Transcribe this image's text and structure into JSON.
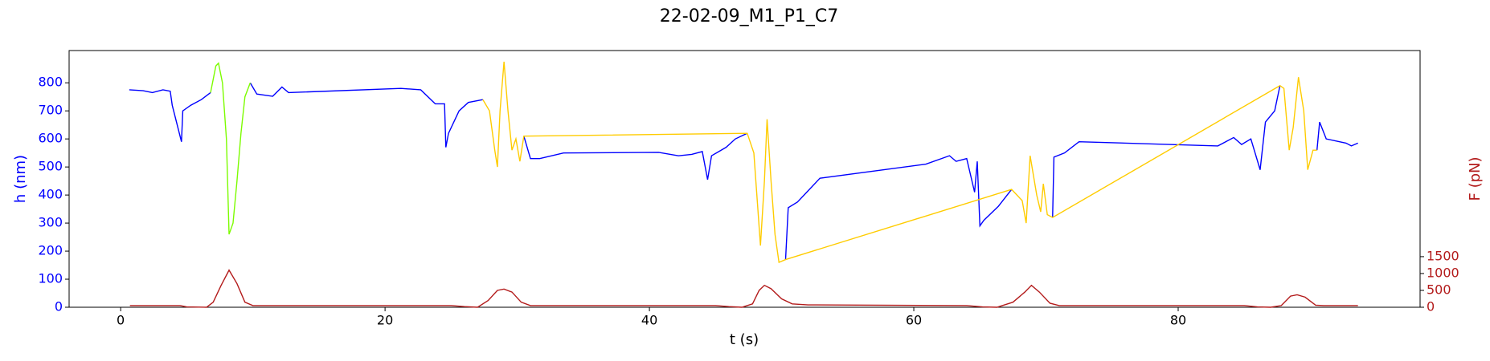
{
  "chart_data": {
    "type": "line",
    "title": "22-02-09_M1_P1_C7",
    "x_label": "t (s)",
    "y_label": "h (nm)",
    "y2_label": "F (pN)",
    "y_label_color": "#0000ff",
    "y2_label_color": "#b31b1b",
    "xlim": [
      -3.9,
      98.3
    ],
    "xticks": [
      0,
      20,
      40,
      60,
      80
    ],
    "ylim": [
      0,
      915
    ],
    "yticks": [
      0,
      100,
      200,
      300,
      400,
      500,
      600,
      700,
      800
    ],
    "y2lim": [
      0,
      7610
    ],
    "y2ticks": [
      0,
      500,
      1000,
      1500
    ],
    "grid": false,
    "series": [
      {
        "color": "#0000ff",
        "x": [
          0.65,
          1.7,
          2.4,
          3.2,
          3.75,
          3.9,
          4.6,
          4.7,
          5.3,
          6.1,
          6.8,
          7.5,
          9.8,
          10.3,
          11.5,
          12.2,
          12.7,
          21.2,
          22.7,
          23.8,
          24.5,
          24.6,
          24.8,
          25.6,
          26.3,
          27.4,
          29.0,
          30.5,
          31.0,
          31.7,
          33.5,
          40.7,
          42.2,
          43.2,
          44.0,
          44.4,
          44.7,
          45.8,
          46.5,
          47.4,
          49.0,
          50.3,
          50.5,
          51.2,
          51.9,
          52.9,
          60.9,
          62.7,
          63.2,
          64.0,
          64.6,
          64.8,
          65.0,
          65.3,
          66.4,
          67.4,
          69.0,
          70.5,
          70.6,
          71.4,
          72.5,
          83.0,
          84.2,
          84.8,
          85.5,
          86.2,
          86.6,
          87.3,
          87.7,
          89.0,
          90.5,
          90.7,
          91.2,
          92.7,
          93.1,
          93.6
        ],
        "values": [
          775,
          772,
          765,
          775,
          770,
          720,
          590,
          700,
          720,
          740,
          765,
          null,
          800,
          760,
          752,
          785,
          765,
          780,
          775,
          725,
          725,
          570,
          620,
          700,
          730,
          740,
          null,
          610,
          530,
          530,
          550,
          552,
          540,
          545,
          555,
          455,
          540,
          570,
          600,
          620,
          null,
          170,
          355,
          375,
          410,
          460,
          510,
          540,
          520,
          530,
          410,
          520,
          290,
          310,
          360,
          420,
          null,
          320,
          535,
          550,
          590,
          575,
          605,
          580,
          600,
          490,
          660,
          700,
          790,
          null,
          560,
          660,
          600,
          585,
          575,
          585
        ]
      },
      {
        "color": "#7cfc00",
        "x": [
          6.8,
          7.2,
          7.4,
          7.7,
          8.0,
          8.2,
          8.5,
          8.8,
          9.1,
          9.4,
          9.8
        ],
        "values": [
          765,
          860,
          870,
          800,
          600,
          260,
          300,
          450,
          620,
          750,
          800
        ]
      },
      {
        "color": "#ffcc00",
        "x": [
          27.4,
          27.9,
          28.3,
          28.5,
          28.7,
          29.0,
          29.3,
          29.6,
          29.9,
          30.2,
          30.5,
          47.4,
          47.9,
          48.4,
          48.7,
          48.9,
          49.2,
          49.5,
          49.8,
          50.3,
          67.4,
          68.2,
          68.5,
          68.8,
          69.3,
          69.6,
          69.8,
          70.1,
          70.5,
          87.7,
          88.0,
          88.4,
          88.7,
          89.1,
          89.5,
          89.8,
          90.2,
          90.5
        ],
        "values": [
          740,
          700,
          560,
          500,
          700,
          875,
          700,
          560,
          600,
          520,
          610,
          620,
          550,
          220,
          450,
          670,
          450,
          260,
          160,
          170,
          420,
          380,
          300,
          540,
          400,
          340,
          440,
          330,
          320,
          790,
          780,
          560,
          640,
          820,
          700,
          490,
          560,
          560
        ]
      },
      {
        "color": "#b31b1b",
        "axis": "y2",
        "x": [
          0.7,
          4.5,
          5.0,
          6.5,
          7.0,
          7.6,
          8.2,
          8.8,
          9.4,
          10.0,
          25.0,
          26.0,
          27.0,
          27.8,
          28.5,
          29.0,
          29.6,
          30.3,
          31.0,
          45.0,
          46.0,
          47.0,
          47.8,
          48.3,
          48.7,
          49.2,
          50.0,
          50.8,
          52.0,
          64.0,
          65.2,
          66.3,
          67.5,
          68.4,
          68.9,
          69.5,
          70.3,
          71.0,
          85.0,
          86.0,
          87.0,
          87.8,
          88.5,
          89.0,
          89.6,
          90.4,
          91.0,
          93.6
        ],
        "values": [
          50,
          50,
          10,
          0,
          150,
          650,
          1100,
          700,
          150,
          50,
          50,
          20,
          0,
          200,
          500,
          540,
          450,
          150,
          50,
          50,
          20,
          0,
          100,
          500,
          650,
          550,
          250,
          100,
          70,
          50,
          10,
          0,
          150,
          450,
          650,
          450,
          120,
          50,
          50,
          10,
          0,
          50,
          330,
          370,
          300,
          60,
          50,
          50
        ]
      }
    ]
  }
}
